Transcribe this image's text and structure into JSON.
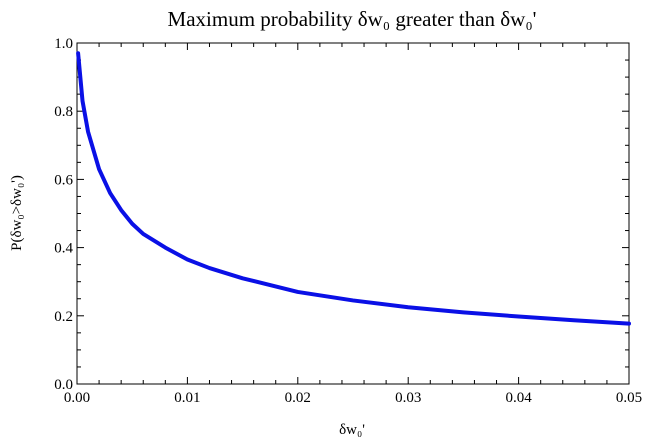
{
  "chart_data": {
    "type": "line",
    "title": "Maximum probability δw₀ greater than δw₀'",
    "xlabel": "δw₀'",
    "ylabel": "P(δw₀>δw₀')",
    "xlim": [
      0,
      0.05
    ],
    "ylim": [
      0,
      1.0
    ],
    "x_ticks": [
      "0.00",
      "0.01",
      "0.02",
      "0.03",
      "0.04",
      "0.05"
    ],
    "y_ticks": [
      "0.0",
      "0.2",
      "0.4",
      "0.6",
      "0.8",
      "1.0"
    ],
    "grid": false,
    "series": [
      {
        "color": "#0a10e6",
        "x": [
          0.0001,
          0.0005,
          0.001,
          0.002,
          0.003,
          0.004,
          0.005,
          0.006,
          0.008,
          0.01,
          0.012,
          0.015,
          0.02,
          0.025,
          0.03,
          0.035,
          0.04,
          0.045,
          0.05
        ],
        "y": [
          0.97,
          0.83,
          0.74,
          0.63,
          0.56,
          0.51,
          0.47,
          0.44,
          0.4,
          0.365,
          0.34,
          0.31,
          0.27,
          0.245,
          0.225,
          0.21,
          0.198,
          0.187,
          0.177
        ]
      }
    ]
  }
}
